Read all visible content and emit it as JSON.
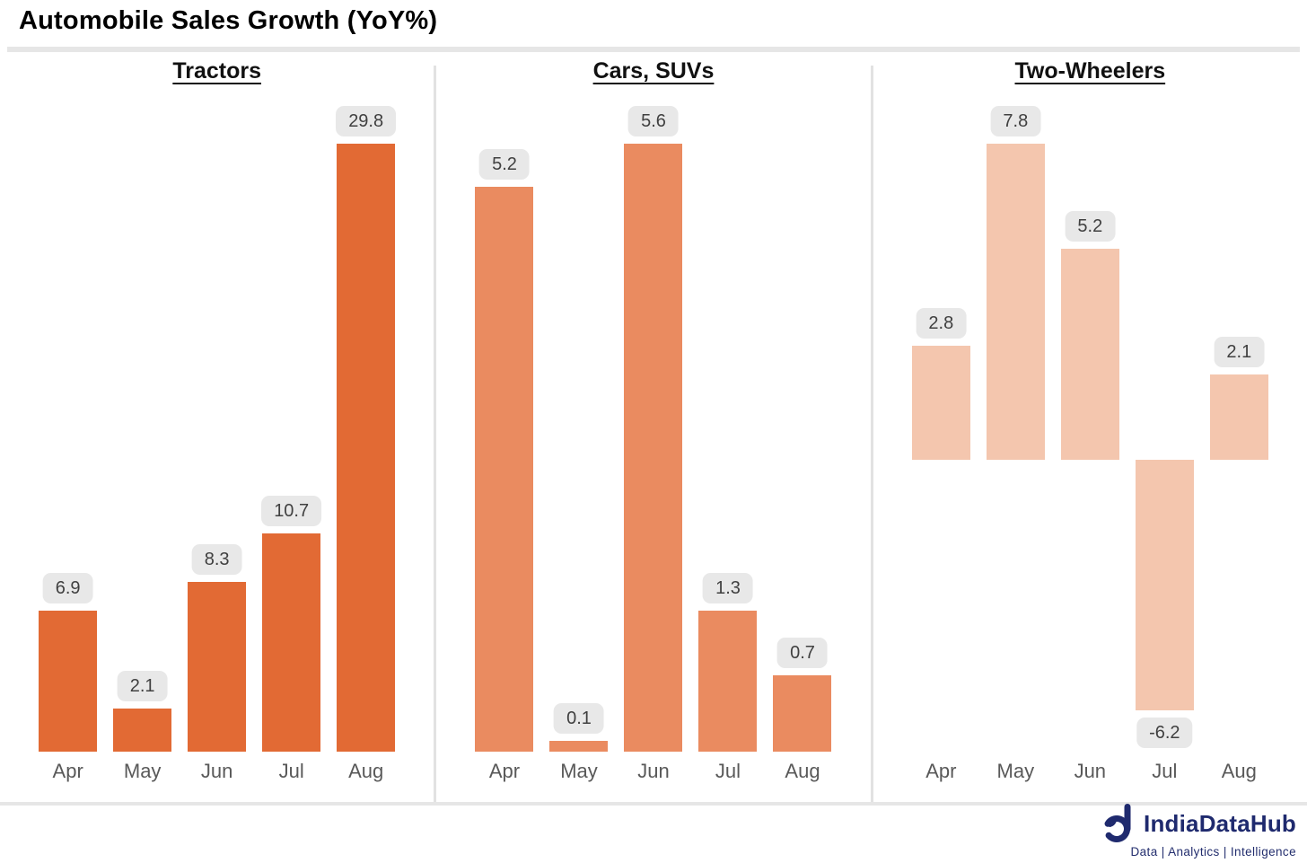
{
  "header": {
    "title": "Automobile Sales Growth (YoY%)"
  },
  "chart_data": {
    "type": "bar",
    "title": "Automobile Sales Growth (YoY%)",
    "categories": [
      "Apr",
      "May",
      "Jun",
      "Jul",
      "Aug"
    ],
    "panels": [
      {
        "name": "Tractors",
        "values": [
          6.9,
          2.1,
          8.3,
          10.7,
          29.8
        ],
        "color": "#E26A34"
      },
      {
        "name": "Cars, SUVs",
        "values": [
          5.2,
          0.1,
          5.6,
          1.3,
          0.7
        ],
        "color": "#EA8B60"
      },
      {
        "name": "Two-Wheelers",
        "values": [
          2.8,
          7.8,
          5.2,
          -6.2,
          2.1
        ],
        "color": "#F4C6AE"
      }
    ],
    "data_labels": true,
    "grid": false,
    "legend": false,
    "value_format": "one_decimal"
  },
  "branding": {
    "logo_text": "IndiaDataHub",
    "tagline": "Data | Analytics | Intelligence"
  },
  "colors": {
    "badge_bg": "#E8E8E8",
    "badge_text": "#404040",
    "axis_text": "#595959",
    "divider": "#E6E6E6",
    "brand_navy": "#1F2A6E"
  }
}
